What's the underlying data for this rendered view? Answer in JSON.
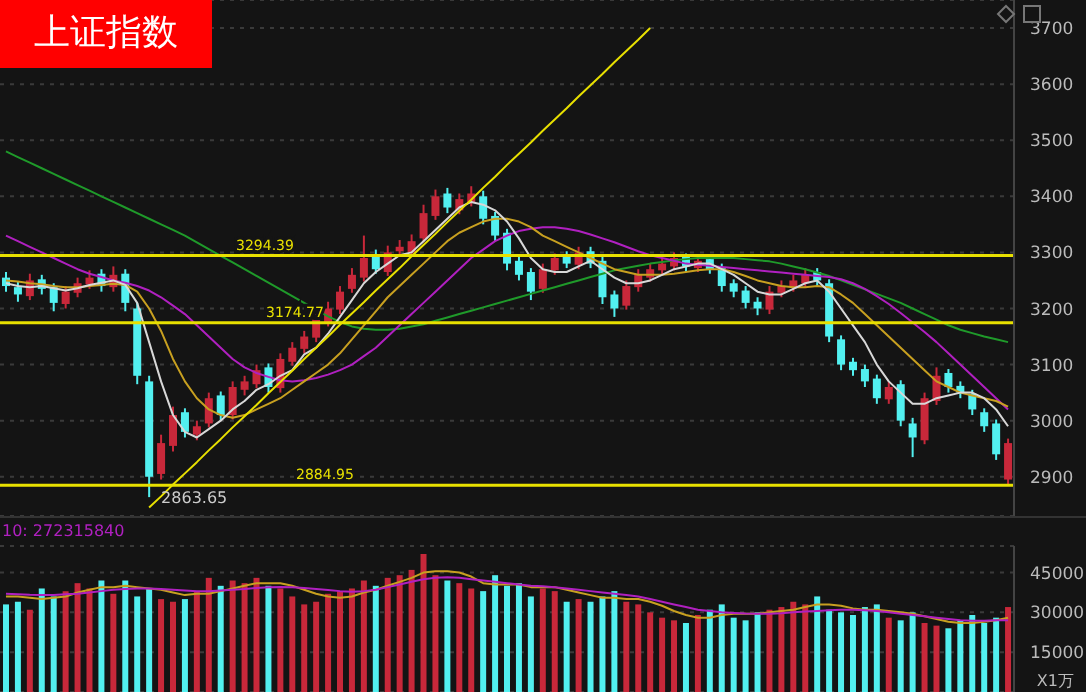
{
  "chart_data": [
    {
      "type": "candlestick",
      "title": "上证指数",
      "categories": [
        null,
        null,
        null,
        null,
        null,
        null,
        null,
        null,
        null,
        null,
        null,
        null,
        null,
        null,
        null,
        null,
        null,
        null,
        null,
        null,
        null,
        null,
        null,
        null,
        null,
        null,
        null,
        null,
        null,
        null,
        null,
        null,
        null,
        null,
        null,
        null,
        null,
        null,
        null,
        null,
        null,
        null,
        null,
        null,
        null,
        null,
        null,
        null,
        null,
        null,
        null,
        null,
        null,
        null,
        null,
        null,
        null,
        null,
        null,
        null,
        null,
        null,
        null,
        null,
        null,
        null,
        null,
        null,
        null,
        null,
        null,
        null,
        null,
        null,
        null,
        null,
        null,
        null,
        null,
        null,
        null,
        null,
        null,
        null,
        null
      ],
      "ohlc": [
        [
          3255,
          3265,
          3230,
          3240
        ],
        [
          3238,
          3248,
          3212,
          3225
        ],
        [
          3222,
          3262,
          3215,
          3250
        ],
        [
          3252,
          3260,
          3225,
          3235
        ],
        [
          3238,
          3245,
          3195,
          3210
        ],
        [
          3208,
          3240,
          3200,
          3230
        ],
        [
          3228,
          3255,
          3220,
          3245
        ],
        [
          3243,
          3268,
          3235,
          3255
        ],
        [
          3262,
          3270,
          3230,
          3240
        ],
        [
          3238,
          3275,
          3230,
          3260
        ],
        [
          3262,
          3270,
          3195,
          3210
        ],
        [
          3200,
          3210,
          3065,
          3080
        ],
        [
          3070,
          3080,
          2863.65,
          2900
        ],
        [
          2905,
          2975,
          2895,
          2960
        ],
        [
          2955,
          3025,
          2945,
          3010
        ],
        [
          3015,
          3022,
          2970,
          2980
        ],
        [
          2975,
          3000,
          2965,
          2990
        ],
        [
          2995,
          3050,
          2988,
          3040
        ],
        [
          3045,
          3052,
          3000,
          3010
        ],
        [
          3010,
          3070,
          3002,
          3060
        ],
        [
          3055,
          3080,
          3045,
          3070
        ],
        [
          3065,
          3100,
          3058,
          3090
        ],
        [
          3095,
          3102,
          3050,
          3060
        ],
        [
          3058,
          3120,
          3050,
          3110
        ],
        [
          3105,
          3140,
          3098,
          3130
        ],
        [
          3128,
          3160,
          3120,
          3150
        ],
        [
          3148,
          3190,
          3140,
          3180
        ],
        [
          3175,
          3212,
          3168,
          3200
        ],
        [
          3198,
          3240,
          3190,
          3230
        ],
        [
          3235,
          3272,
          3228,
          3260
        ],
        [
          3255,
          3330,
          3248,
          3290
        ],
        [
          3295,
          3305,
          3262,
          3270
        ],
        [
          3265,
          3312,
          3258,
          3300
        ],
        [
          3302,
          3322,
          3292,
          3310
        ],
        [
          3300,
          3332,
          3292,
          3320
        ],
        [
          3325,
          3385,
          3318,
          3370
        ],
        [
          3365,
          3412,
          3358,
          3400
        ],
        [
          3405,
          3415,
          3370,
          3380
        ],
        [
          3375,
          3405,
          3368,
          3395
        ],
        [
          3390,
          3418,
          3382,
          3405
        ],
        [
          3400,
          3410,
          3350,
          3360
        ],
        [
          3365,
          3372,
          3320,
          3330
        ],
        [
          3335,
          3342,
          3268,
          3280
        ],
        [
          3285,
          3292,
          3250,
          3260
        ],
        [
          3265,
          3272,
          3215,
          3230
        ],
        [
          3235,
          3280,
          3228,
          3270
        ],
        [
          3268,
          3298,
          3260,
          3290
        ],
        [
          3295,
          3302,
          3272,
          3280
        ],
        [
          3278,
          3310,
          3270,
          3300
        ],
        [
          3302,
          3310,
          3272,
          3280
        ],
        [
          3285,
          3292,
          3208,
          3220
        ],
        [
          3225,
          3232,
          3185,
          3200
        ],
        [
          3205,
          3250,
          3198,
          3240
        ],
        [
          3238,
          3270,
          3230,
          3260
        ],
        [
          3255,
          3280,
          3248,
          3270
        ],
        [
          3268,
          3290,
          3260,
          3280
        ],
        [
          3275,
          3300,
          3268,
          3290
        ],
        [
          3292,
          3298,
          3265,
          3275
        ],
        [
          3272,
          3295,
          3265,
          3285
        ],
        [
          3288,
          3295,
          3262,
          3270
        ],
        [
          3272,
          3280,
          3230,
          3240
        ],
        [
          3245,
          3252,
          3220,
          3230
        ],
        [
          3232,
          3240,
          3200,
          3210
        ],
        [
          3212,
          3220,
          3188,
          3200
        ],
        [
          3198,
          3240,
          3190,
          3230
        ],
        [
          3228,
          3250,
          3220,
          3240
        ],
        [
          3238,
          3260,
          3230,
          3250
        ],
        [
          3245,
          3272,
          3238,
          3260
        ],
        [
          3265,
          3272,
          3240,
          3250
        ],
        [
          3245,
          3252,
          3140,
          3150
        ],
        [
          3145,
          3152,
          3090,
          3100
        ],
        [
          3105,
          3112,
          3080,
          3090
        ],
        [
          3092,
          3100,
          3060,
          3070
        ],
        [
          3075,
          3082,
          3030,
          3040
        ],
        [
          3038,
          3070,
          3030,
          3060
        ],
        [
          3065,
          3072,
          2990,
          3000
        ],
        [
          2995,
          3005,
          2935,
          2970
        ],
        [
          2965,
          3050,
          2958,
          3040
        ],
        [
          3035,
          3095,
          3028,
          3080
        ],
        [
          3085,
          3092,
          3050,
          3060
        ],
        [
          3062,
          3070,
          3040,
          3050
        ],
        [
          3048,
          3055,
          3010,
          3020
        ],
        [
          3015,
          3022,
          2980,
          2990
        ],
        [
          2995,
          3002,
          2930,
          2940
        ],
        [
          2895,
          2968,
          2885,
          2960
        ]
      ],
      "colors": [
        "#52f0f0",
        "#52f0f0",
        "#c8283a",
        "#52f0f0",
        "#52f0f0",
        "#c8283a",
        "#c8283a",
        "#c8283a",
        "#52f0f0",
        "#c8283a",
        "#52f0f0",
        "#52f0f0",
        "#52f0f0",
        "#c8283a",
        "#c8283a",
        "#52f0f0",
        "#c8283a",
        "#c8283a",
        "#52f0f0",
        "#c8283a",
        "#c8283a",
        "#c8283a",
        "#52f0f0",
        "#c8283a",
        "#c8283a",
        "#c8283a",
        "#c8283a",
        "#c8283a",
        "#c8283a",
        "#c8283a",
        "#c8283a",
        "#52f0f0",
        "#c8283a",
        "#c8283a",
        "#c8283a",
        "#c8283a",
        "#c8283a",
        "#52f0f0",
        "#c8283a",
        "#c8283a",
        "#52f0f0",
        "#52f0f0",
        "#52f0f0",
        "#52f0f0",
        "#52f0f0",
        "#c8283a",
        "#c8283a",
        "#52f0f0",
        "#c8283a",
        "#52f0f0",
        "#52f0f0",
        "#52f0f0",
        "#c8283a",
        "#c8283a",
        "#c8283a",
        "#c8283a",
        "#c8283a",
        "#52f0f0",
        "#c8283a",
        "#52f0f0",
        "#52f0f0",
        "#52f0f0",
        "#52f0f0",
        "#52f0f0",
        "#c8283a",
        "#c8283a",
        "#c8283a",
        "#c8283a",
        "#52f0f0",
        "#52f0f0",
        "#52f0f0",
        "#52f0f0",
        "#52f0f0",
        "#52f0f0",
        "#c8283a",
        "#52f0f0",
        "#52f0f0",
        "#c8283a",
        "#c8283a",
        "#52f0f0",
        "#52f0f0",
        "#52f0f0",
        "#52f0f0",
        "#52f0f0",
        "#c8283a"
      ],
      "series": [
        {
          "type": "line",
          "color": "#1f9a2a",
          "values": [
            3480,
            3470,
            3460,
            3450,
            3440,
            3430,
            3420,
            3410,
            3400,
            3390,
            3380,
            3370,
            3360,
            3350,
            3340,
            3330,
            3318,
            3306,
            3294,
            3282,
            3270,
            3258,
            3246,
            3234,
            3222,
            3210,
            3198,
            3186,
            3176,
            3168,
            3164,
            3162,
            3162,
            3164,
            3168,
            3172,
            3178,
            3184,
            3190,
            3196,
            3202,
            3208,
            3214,
            3220,
            3226,
            3232,
            3238,
            3244,
            3250,
            3256,
            3262,
            3268,
            3272,
            3276,
            3280,
            3283,
            3286,
            3288,
            3290,
            3290,
            3290,
            3290,
            3288,
            3286,
            3284,
            3280,
            3275,
            3270,
            3264,
            3258,
            3250,
            3242,
            3234,
            3226,
            3218,
            3210,
            3200,
            3190,
            3180,
            3170,
            3162,
            3156,
            3150,
            3145,
            3140
          ]
        },
        {
          "type": "line",
          "color": "#b020c0",
          "values": [
            3330,
            3320,
            3310,
            3300,
            3290,
            3280,
            3270,
            3262,
            3256,
            3250,
            3246,
            3240,
            3232,
            3220,
            3205,
            3190,
            3170,
            3150,
            3130,
            3110,
            3095,
            3085,
            3078,
            3072,
            3070,
            3072,
            3076,
            3082,
            3090,
            3100,
            3115,
            3130,
            3150,
            3170,
            3190,
            3210,
            3230,
            3250,
            3270,
            3290,
            3305,
            3320,
            3330,
            3338,
            3342,
            3345,
            3345,
            3342,
            3338,
            3332,
            3325,
            3318,
            3310,
            3302,
            3295,
            3290,
            3285,
            3280,
            3278,
            3276,
            3274,
            3272,
            3270,
            3268,
            3266,
            3264,
            3262,
            3260,
            3258,
            3256,
            3252,
            3245,
            3235,
            3222,
            3208,
            3192,
            3175,
            3158,
            3140,
            3120,
            3100,
            3080,
            3060,
            3040,
            3020
          ]
        },
        {
          "type": "line",
          "color": "#c8a020",
          "values": [
            3250,
            3248,
            3245,
            3243,
            3240,
            3238,
            3238,
            3240,
            3242,
            3244,
            3242,
            3230,
            3200,
            3160,
            3110,
            3070,
            3040,
            3020,
            3010,
            3005,
            3010,
            3020,
            3030,
            3040,
            3055,
            3070,
            3085,
            3100,
            3120,
            3145,
            3170,
            3195,
            3220,
            3240,
            3260,
            3280,
            3300,
            3320,
            3335,
            3345,
            3355,
            3360,
            3360,
            3355,
            3345,
            3330,
            3320,
            3310,
            3300,
            3290,
            3280,
            3270,
            3265,
            3260,
            3260,
            3260,
            3262,
            3265,
            3268,
            3270,
            3270,
            3265,
            3258,
            3250,
            3245,
            3240,
            3238,
            3238,
            3240,
            3238,
            3225,
            3210,
            3190,
            3170,
            3150,
            3130,
            3110,
            3090,
            3070,
            3060,
            3050,
            3045,
            3040,
            3035,
            3025
          ]
        },
        {
          "type": "line",
          "color": "#d8d8d8",
          "values": [
            3245,
            3240,
            3238,
            3240,
            3236,
            3232,
            3236,
            3242,
            3246,
            3250,
            3242,
            3210,
            3140,
            3070,
            3010,
            2980,
            2970,
            2985,
            3000,
            3020,
            3035,
            3055,
            3065,
            3080,
            3090,
            3118,
            3130,
            3155,
            3185,
            3215,
            3245,
            3265,
            3280,
            3295,
            3300,
            3320,
            3340,
            3360,
            3380,
            3390,
            3385,
            3375,
            3355,
            3325,
            3290,
            3270,
            3265,
            3265,
            3275,
            3285,
            3270,
            3255,
            3245,
            3245,
            3250,
            3260,
            3270,
            3275,
            3280,
            3280,
            3270,
            3260,
            3245,
            3230,
            3225,
            3225,
            3235,
            3245,
            3250,
            3230,
            3200,
            3170,
            3140,
            3100,
            3070,
            3050,
            3030,
            3030,
            3040,
            3045,
            3050,
            3050,
            3040,
            3020,
            2990
          ]
        },
        {
          "type": "line",
          "color": "#e8e000",
          "values": [
            null,
            null,
            null,
            null,
            null,
            null,
            null,
            null,
            null,
            null,
            null,
            null,
            2845,
            2865,
            2886,
            2906,
            2926,
            2947,
            2967,
            2988,
            3008,
            3028,
            3049,
            3069,
            3089,
            3110,
            3130,
            3150,
            3171,
            3191,
            3211,
            3232,
            3252,
            3272,
            3293,
            3313,
            3333,
            3354,
            3374,
            3394,
            3415,
            3435,
            3456,
            3476,
            3496,
            3517,
            3537,
            3557,
            3578,
            3598,
            3618,
            3639,
            3659,
            3679,
            3700,
            null,
            null,
            null,
            null,
            null,
            null,
            null,
            null,
            null,
            null,
            null,
            null,
            null,
            null,
            null,
            null,
            null,
            null,
            null,
            null,
            null,
            null,
            null,
            null,
            null,
            null,
            null,
            null,
            null,
            null
          ]
        }
      ],
      "ref_lines": [
        {
          "axis": "y",
          "value": 3294.39,
          "label": "3294.39",
          "color": "#e8e000"
        },
        {
          "axis": "y",
          "value": 3174.77,
          "label": "3174.77",
          "color": "#e8e000"
        },
        {
          "axis": "y",
          "value": 2884.95,
          "label": "2884.95",
          "color": "#e8e000"
        }
      ],
      "annotations": [
        "2863.65"
      ],
      "ylim": [
        2830,
        3750
      ],
      "yticks": [
        2900,
        3000,
        3100,
        3200,
        3300,
        3400,
        3500,
        3600,
        3700
      ],
      "grid": "y",
      "tick_labels": "y"
    },
    {
      "type": "bar",
      "categories": [
        null,
        null,
        null,
        null,
        null,
        null,
        null,
        null,
        null,
        null,
        null,
        null,
        null,
        null,
        null,
        null,
        null,
        null,
        null,
        null,
        null,
        null,
        null,
        null,
        null,
        null,
        null,
        null,
        null,
        null,
        null,
        null,
        null,
        null,
        null,
        null,
        null,
        null,
        null,
        null,
        null,
        null,
        null,
        null,
        null,
        null,
        null,
        null,
        null,
        null,
        null,
        null,
        null,
        null,
        null,
        null,
        null,
        null,
        null,
        null,
        null,
        null,
        null,
        null,
        null,
        null,
        null,
        null,
        null,
        null,
        null,
        null,
        null,
        null,
        null,
        null,
        null,
        null,
        null,
        null,
        null,
        null,
        null,
        null,
        null
      ],
      "series": [
        {
          "type": "bar",
          "values": [
            33000,
            34000,
            31000,
            39000,
            36000,
            38000,
            41000,
            39000,
            42000,
            37000,
            42000,
            36000,
            39000,
            35000,
            34000,
            35000,
            38000,
            43000,
            40000,
            42000,
            41000,
            43000,
            40000,
            39000,
            36000,
            33000,
            34000,
            37000,
            38000,
            39000,
            42000,
            40000,
            43000,
            44000,
            46000,
            52000,
            44000,
            42000,
            41000,
            39000,
            38000,
            44000,
            40000,
            41000,
            36000,
            39000,
            38000,
            34000,
            35000,
            34000,
            36000,
            38000,
            34000,
            33000,
            30000,
            28000,
            27000,
            26000,
            29000,
            31000,
            33000,
            28000,
            27000,
            30000,
            31000,
            32000,
            34000,
            33000,
            36000,
            31000,
            30000,
            29000,
            32000,
            33000,
            28000,
            27000,
            30000,
            26000,
            25000,
            24000,
            27000,
            29000,
            26000,
            28000,
            32000
          ],
          "colors": [
            "#52f0f0",
            "#52f0f0",
            "#c8283a",
            "#52f0f0",
            "#52f0f0",
            "#c8283a",
            "#c8283a",
            "#c8283a",
            "#52f0f0",
            "#c8283a",
            "#52f0f0",
            "#52f0f0",
            "#52f0f0",
            "#c8283a",
            "#c8283a",
            "#52f0f0",
            "#c8283a",
            "#c8283a",
            "#52f0f0",
            "#c8283a",
            "#c8283a",
            "#c8283a",
            "#52f0f0",
            "#c8283a",
            "#c8283a",
            "#c8283a",
            "#c8283a",
            "#c8283a",
            "#c8283a",
            "#c8283a",
            "#c8283a",
            "#52f0f0",
            "#c8283a",
            "#c8283a",
            "#c8283a",
            "#c8283a",
            "#c8283a",
            "#52f0f0",
            "#c8283a",
            "#c8283a",
            "#52f0f0",
            "#52f0f0",
            "#52f0f0",
            "#52f0f0",
            "#52f0f0",
            "#c8283a",
            "#c8283a",
            "#52f0f0",
            "#c8283a",
            "#52f0f0",
            "#52f0f0",
            "#52f0f0",
            "#c8283a",
            "#c8283a",
            "#c8283a",
            "#c8283a",
            "#c8283a",
            "#52f0f0",
            "#c8283a",
            "#52f0f0",
            "#52f0f0",
            "#52f0f0",
            "#52f0f0",
            "#52f0f0",
            "#c8283a",
            "#c8283a",
            "#c8283a",
            "#c8283a",
            "#52f0f0",
            "#52f0f0",
            "#52f0f0",
            "#52f0f0",
            "#52f0f0",
            "#52f0f0",
            "#c8283a",
            "#52f0f0",
            "#52f0f0",
            "#c8283a",
            "#c8283a",
            "#52f0f0",
            "#52f0f0",
            "#52f0f0",
            "#52f0f0",
            "#52f0f0",
            "#c8283a"
          ]
        },
        {
          "type": "line",
          "color": "#c8a020",
          "values": [
            36000,
            36000,
            35500,
            35000,
            35500,
            36000,
            37500,
            38500,
            39500,
            39500,
            40000,
            39500,
            39000,
            38500,
            37500,
            36500,
            37000,
            37000,
            38000,
            39000,
            40000,
            41000,
            41000,
            41000,
            40000,
            38500,
            37000,
            36000,
            35500,
            36000,
            37500,
            38500,
            40000,
            41500,
            43000,
            45000,
            45500,
            45500,
            45000,
            43500,
            41000,
            40500,
            40500,
            40500,
            39500,
            39500,
            39500,
            38500,
            37500,
            36500,
            35500,
            35500,
            35000,
            35000,
            34000,
            32500,
            30500,
            29000,
            28000,
            28000,
            29000,
            29500,
            29500,
            29500,
            30000,
            30500,
            31000,
            32000,
            33000,
            33000,
            32500,
            31500,
            31000,
            31000,
            30500,
            30000,
            29500,
            28500,
            27500,
            26500,
            26000,
            26000,
            26500,
            27000,
            28000
          ]
        },
        {
          "type": "line",
          "color": "#b020c0",
          "values": [
            37000,
            36800,
            36600,
            36500,
            36500,
            36800,
            37000,
            37500,
            38000,
            38500,
            38800,
            39000,
            39000,
            38800,
            38500,
            38200,
            38000,
            38000,
            38200,
            38500,
            38800,
            39200,
            39500,
            39600,
            39500,
            39200,
            38800,
            38400,
            38000,
            37800,
            38000,
            38500,
            39500,
            40500,
            41500,
            42500,
            43000,
            43200,
            43000,
            42500,
            42000,
            41500,
            41000,
            40500,
            40000,
            39800,
            39500,
            39000,
            38500,
            38000,
            37500,
            37000,
            36500,
            36000,
            35000,
            34000,
            33000,
            32000,
            31000,
            30500,
            30000,
            29800,
            29600,
            29500,
            29500,
            29700,
            30000,
            30300,
            30500,
            30800,
            31000,
            31000,
            30800,
            30500,
            30000,
            29500,
            29000,
            28500,
            28000,
            27500,
            27000,
            26800,
            26800,
            27000,
            27000
          ]
        }
      ],
      "ylabel": "X1万",
      "annotations": [
        "10: 272315840"
      ],
      "ylim": [
        0,
        55000
      ],
      "yticks": [
        15000,
        30000,
        45000
      ],
      "grid": "y",
      "tick_labels": "y"
    }
  ]
}
